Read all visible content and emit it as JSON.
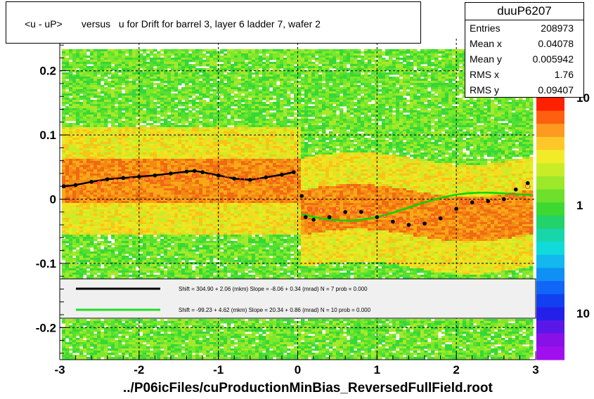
{
  "title": "<u - uP>       versus   u for Drift for barrel 3, layer 6 ladder 7, wafer 2",
  "stats": {
    "name": "duuP6207",
    "rows": [
      {
        "key": "Entries",
        "value": "208973"
      },
      {
        "key": "Mean x",
        "value": "0.04078"
      },
      {
        "key": "Mean y",
        "value": "0.005942"
      },
      {
        "key": "RMS x",
        "value": "1.76"
      },
      {
        "key": "RMS y",
        "value": "0.09407"
      }
    ]
  },
  "footer": "../P06icFiles/cuProductionMinBias_ReversedFullField.root",
  "colors": {
    "black_fit": "#000000",
    "green_fit": "#00d800",
    "profile_open": "#ff3a3a"
  },
  "chart_data": {
    "type": "heatmap",
    "xlim": [
      -3,
      3
    ],
    "ylim": [
      -0.25,
      0.25
    ],
    "x_ticks": [
      "-3",
      "-2",
      "-1",
      "0",
      "1",
      "2",
      "3"
    ],
    "y_ticks": [
      "-0.2",
      "-0.1",
      "0",
      "0.1",
      "0.2"
    ],
    "grid": true,
    "color_scale": {
      "log": true,
      "tick_labels": [
        "10",
        "1",
        "10"
      ]
    },
    "legend": {
      "placement": "bottom",
      "entries": [
        {
          "color": "black",
          "text": "Shift =    304.90 + 2.06 (mkm) Slope =    -8.06 + 0.34 (mrad)  N = 7 prob = 0.000"
        },
        {
          "color": "green",
          "text": "Shift =    -99.23 + 4.62 (mkm) Slope =    20.34 + 0.86 (mrad)  N = 10 prob = 0.000"
        }
      ]
    },
    "series": [
      {
        "marker": "filled-circle",
        "x": [
          -2.95,
          -2.8,
          -2.6,
          -2.4,
          -2.2,
          -2.0,
          -1.8,
          -1.6,
          -1.4,
          -1.3,
          -1.2,
          -1.0,
          -0.8,
          -0.6,
          -0.4,
          -0.2,
          -0.05,
          0.05,
          0.1,
          0.2,
          0.4,
          0.6,
          0.8,
          1.0,
          1.2,
          1.4,
          1.6,
          1.8,
          2.0,
          2.2,
          2.4,
          2.6,
          2.75,
          2.9
        ],
        "y": [
          0.02,
          0.022,
          0.027,
          0.031,
          0.033,
          0.035,
          0.037,
          0.04,
          0.043,
          0.044,
          0.042,
          0.037,
          0.032,
          0.03,
          0.034,
          0.038,
          0.042,
          0.005,
          -0.028,
          -0.032,
          -0.028,
          -0.02,
          -0.02,
          -0.028,
          -0.035,
          -0.04,
          -0.038,
          -0.03,
          -0.015,
          -0.005,
          -0.003,
          0.0,
          0.015,
          0.025
        ]
      },
      {
        "marker": "open-circle",
        "x": [
          -2.9,
          -2.7,
          -2.5,
          -2.3,
          -2.1,
          -1.9,
          -1.7,
          -1.5,
          -1.3,
          -1.1,
          -0.9,
          -0.7,
          -0.5,
          -0.3,
          -0.1,
          0.15,
          0.3,
          0.5,
          0.7,
          0.9,
          1.1,
          1.3,
          1.5,
          1.7,
          1.9,
          2.1,
          2.3,
          2.5,
          2.7,
          2.9
        ],
        "y": [
          0.0,
          0.018,
          0.025,
          0.028,
          0.03,
          0.031,
          0.033,
          0.035,
          0.036,
          0.035,
          0.032,
          0.03,
          0.03,
          0.031,
          0.032,
          -0.015,
          -0.018,
          -0.015,
          -0.015,
          -0.018,
          -0.025,
          -0.032,
          -0.035,
          -0.028,
          -0.015,
          -0.005,
          -0.005,
          -0.005,
          0.005,
          0.02
        ]
      }
    ]
  }
}
